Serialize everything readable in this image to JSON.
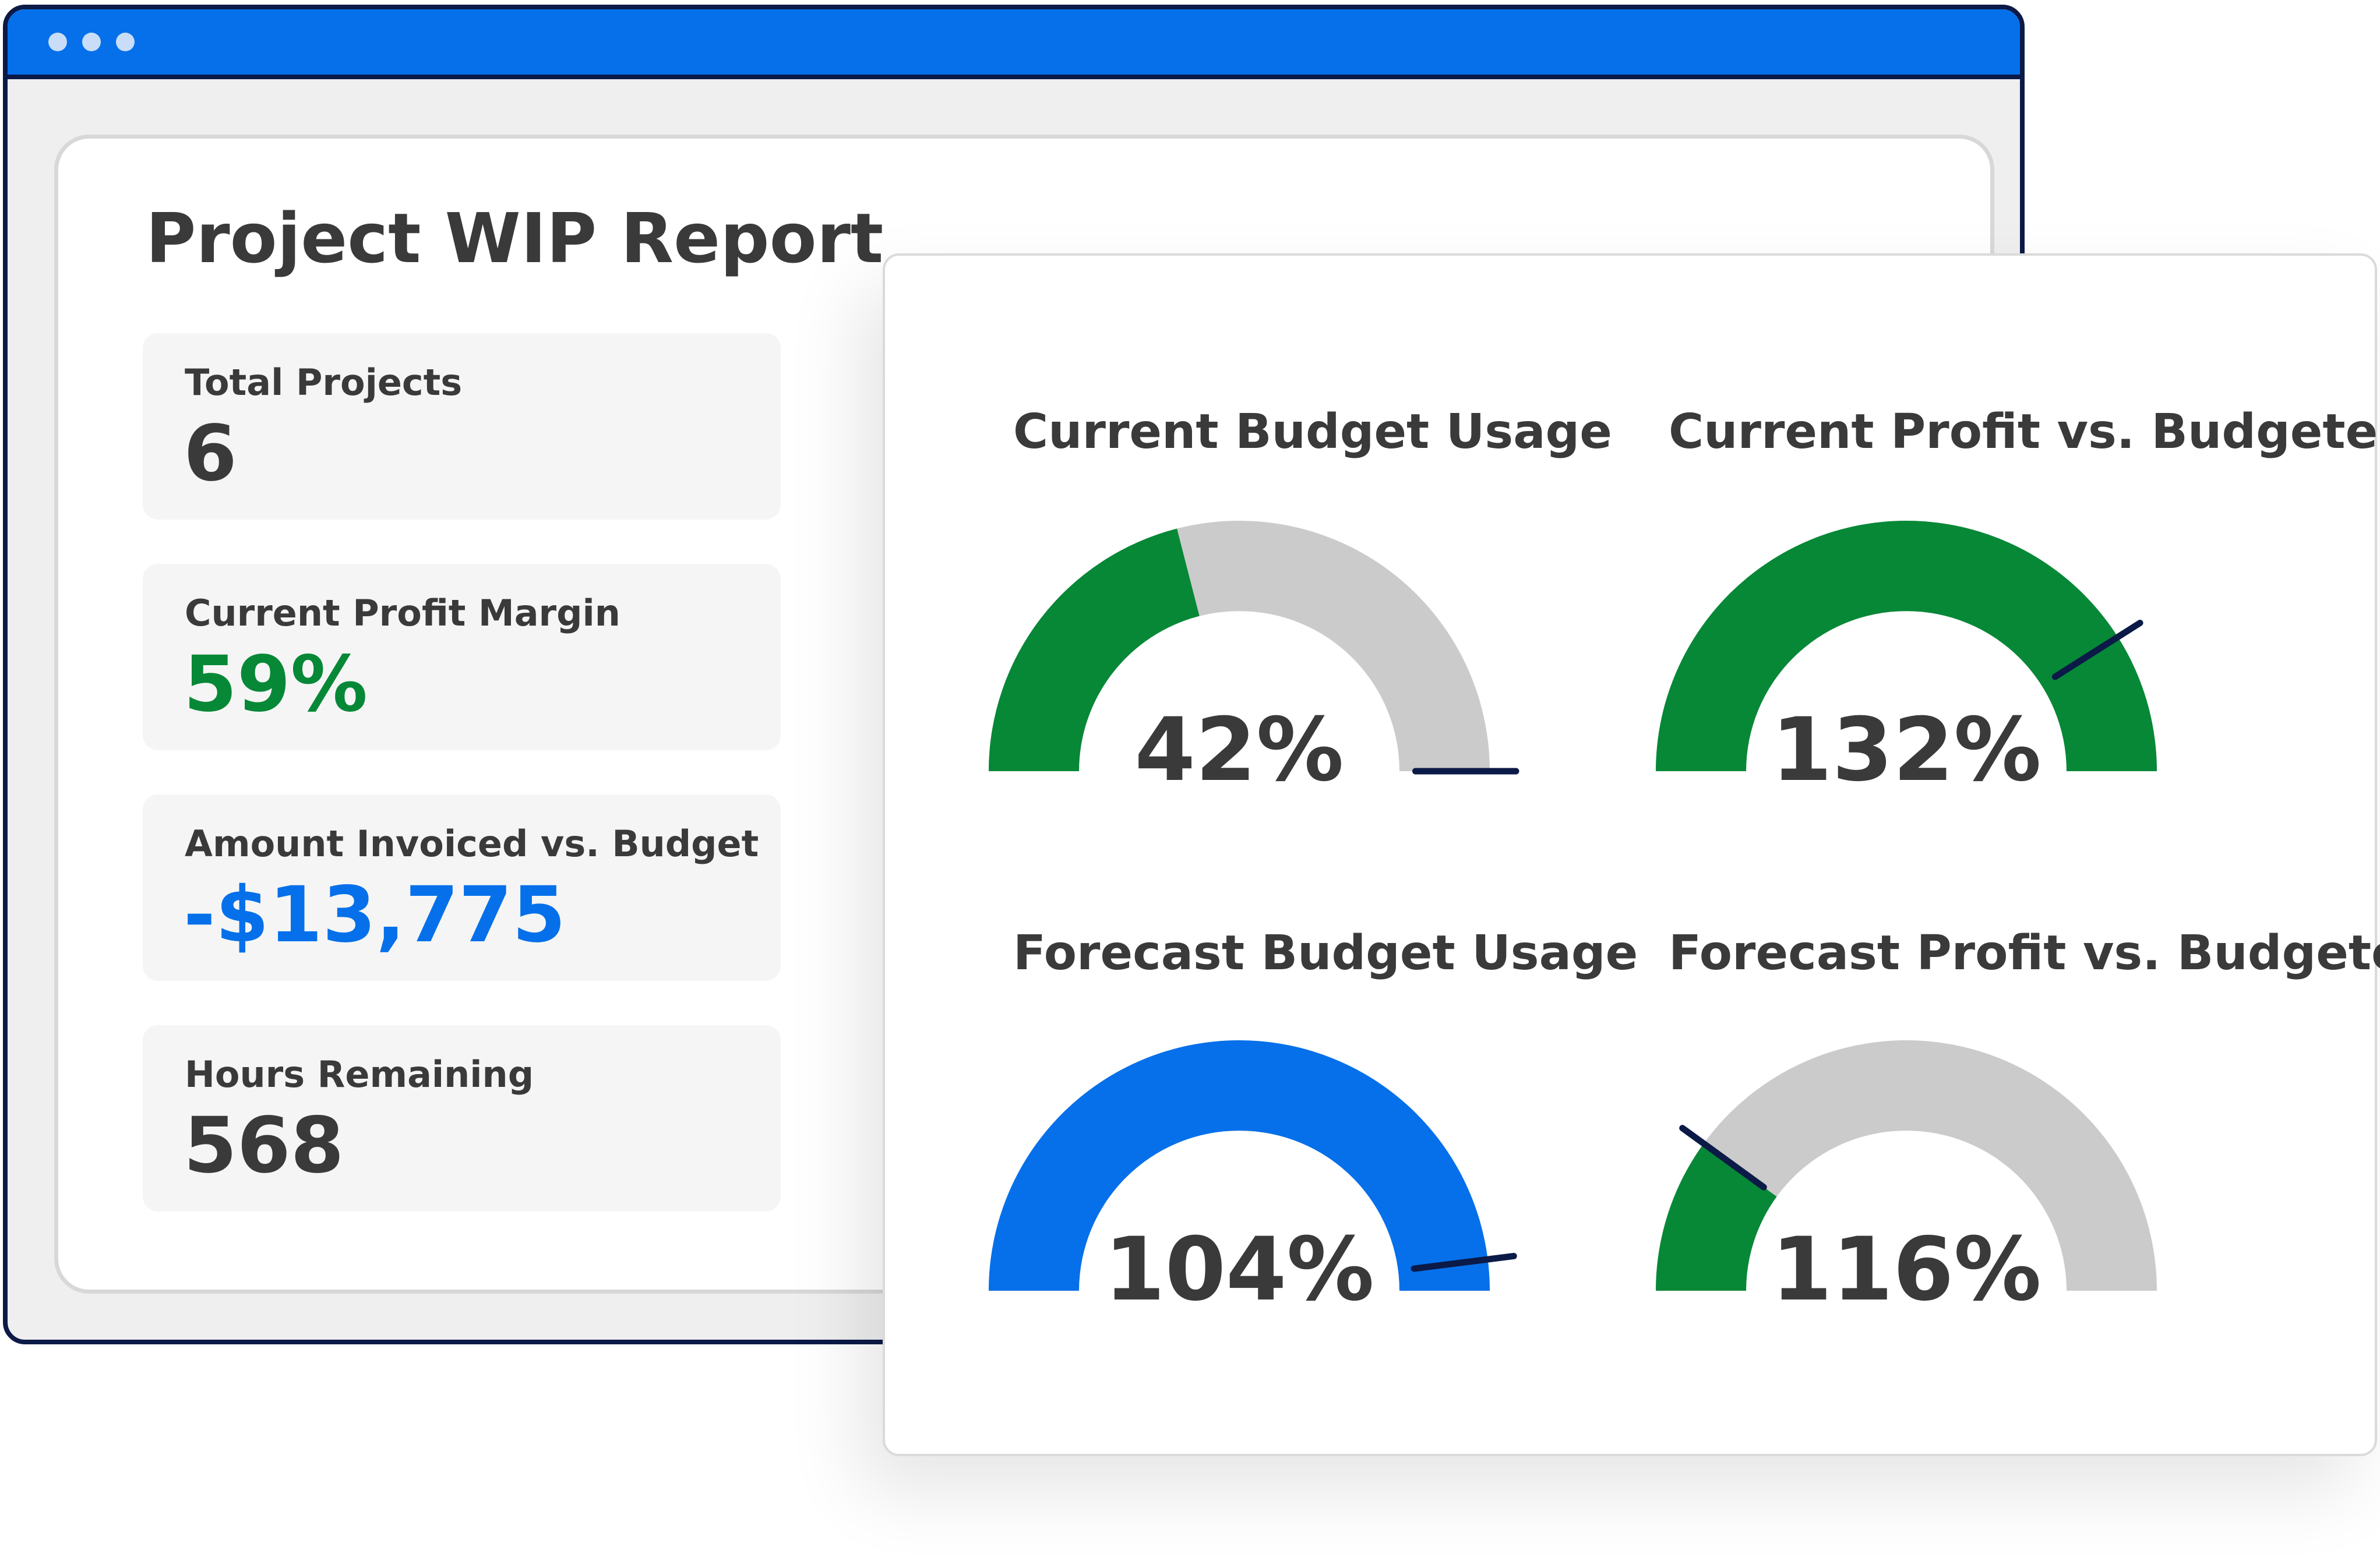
{
  "window": {
    "titlebar_color": "#0570ea",
    "report_title": "Project WIP Report"
  },
  "kpis": [
    {
      "label": "Total Projects",
      "value": "6",
      "color": "#3a3a3a"
    },
    {
      "label": "Current Profit Margin",
      "value": "59%",
      "color": "#068837"
    },
    {
      "label": "Amount Invoiced vs. Budget",
      "value": "-$13,775",
      "color": "#0570ea"
    },
    {
      "label": "Hours Remaining",
      "value": "568",
      "color": "#3a3a3a"
    }
  ],
  "gauges": [
    {
      "title": "Current Budget Usage",
      "value_label": "42%",
      "fill_fraction": 0.42,
      "marker_fraction": 1.0,
      "fill_color": "#068837"
    },
    {
      "title": "Current Profit vs. Budgeted",
      "value_label": "132%",
      "fill_fraction": 1.0,
      "marker_fraction": 0.82,
      "fill_color": "#068837"
    },
    {
      "title": "Forecast Budget Usage",
      "value_label": "104%",
      "fill_fraction": 1.0,
      "marker_fraction": 0.96,
      "fill_color": "#0570ea"
    },
    {
      "title": "Forecast Profit vs. Budgeted",
      "value_label": "116%",
      "fill_fraction": 0.2,
      "marker_fraction": 0.2,
      "fill_color": "#068837"
    }
  ],
  "colors": {
    "track": "#cbcbcb",
    "marker": "#0b1a47",
    "text": "#3a3a3a"
  }
}
